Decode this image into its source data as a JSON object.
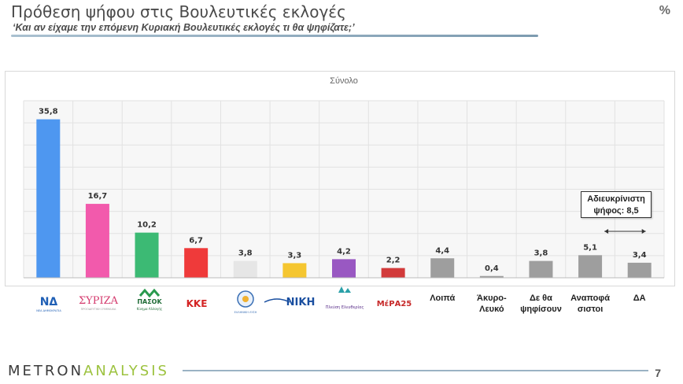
{
  "header": {
    "title": "Πρόθεση ψήφου στις Βουλευτικές εκλογές",
    "subtitle": "‘Και αν είχαμε την επόμενη Κυριακή Βουλευτικές εκλογές τι θα ψηφίζατε;’",
    "unit": "%"
  },
  "chart_data": {
    "type": "bar",
    "title": "Σύνολο",
    "categories": [
      "ΝΔ",
      "ΣΥΡΙΖΑ",
      "ΠΑΣΟΚ",
      "ΚΚΕ",
      "ΕΛΛΗΝΙΚΗ ΛΥΣΗ",
      "ΝΙΚΗ",
      "Πλεύση Ελευθερίας",
      "ΜέΡΑ25",
      "Λοιπά",
      "Άκυρο-Λευκό",
      "Δε θα ψηφίσουν",
      "Αναποφάσιστοι",
      "ΔΑ"
    ],
    "category_labels": [
      "",
      "",
      "",
      "",
      "",
      "",
      "",
      "",
      "Λοιπά",
      "Άκυρο-\nΛευκό",
      "Δε θα\nψηφίσουν",
      "Αναποφά\nσιστοι",
      "ΔΑ"
    ],
    "values": [
      35.8,
      16.7,
      10.2,
      6.7,
      3.8,
      3.3,
      4.2,
      2.2,
      4.4,
      0.4,
      3.8,
      5.1,
      3.4
    ],
    "value_labels": [
      "35,8",
      "16,7",
      "10,2",
      "6,7",
      "3,8",
      "3,3",
      "4,2",
      "2,2",
      "4,4",
      "0,4",
      "3,8",
      "5,1",
      "3,4"
    ],
    "colors": [
      "#4e97f0",
      "#f25aac",
      "#3cba74",
      "#ef3a3a",
      "#e6e6e6",
      "#f5c630",
      "#9958c2",
      "#d23a3a",
      "#9e9e9e",
      "#9e9e9e",
      "#9e9e9e",
      "#9e9e9e",
      "#9e9e9e"
    ],
    "ylim": [
      0,
      40
    ],
    "grid": true,
    "annotation": {
      "text_line1": "Αδιευκρίνιστη",
      "text_line2": "ψήφος: 8,5",
      "spans": [
        "Αναποφάσιστοι",
        "ΔΑ"
      ]
    }
  },
  "party_logos": {
    "nd": "ΝΔ",
    "nd_sub": "ΝΕΑ ΔΗΜΟΚΡΑΤΙΑ",
    "syriza": "ΣΥΡΙΖΑ",
    "syriza_sub": "ΠΡΟΟΔΕΥΤΙΚΗ ΣΥΜΜΑΧΙΑ",
    "pasok": "ΠΑΣΟΚ",
    "pasok_sub": "Κίνημα Αλλαγής",
    "kke": "ΚΚΕ",
    "elliniki_lysi": "ΕΛΛΗΝΙΚΗ ΛΥΣΗ",
    "niki": "ΝΙΚΗ",
    "plefsi": "Πλεύση Ελευθερίας",
    "mera25": "ΜέΡΑ25"
  },
  "footer": {
    "brand_part1": "METRON",
    "brand_part2": "ANALYSIS",
    "page_number": "7"
  }
}
